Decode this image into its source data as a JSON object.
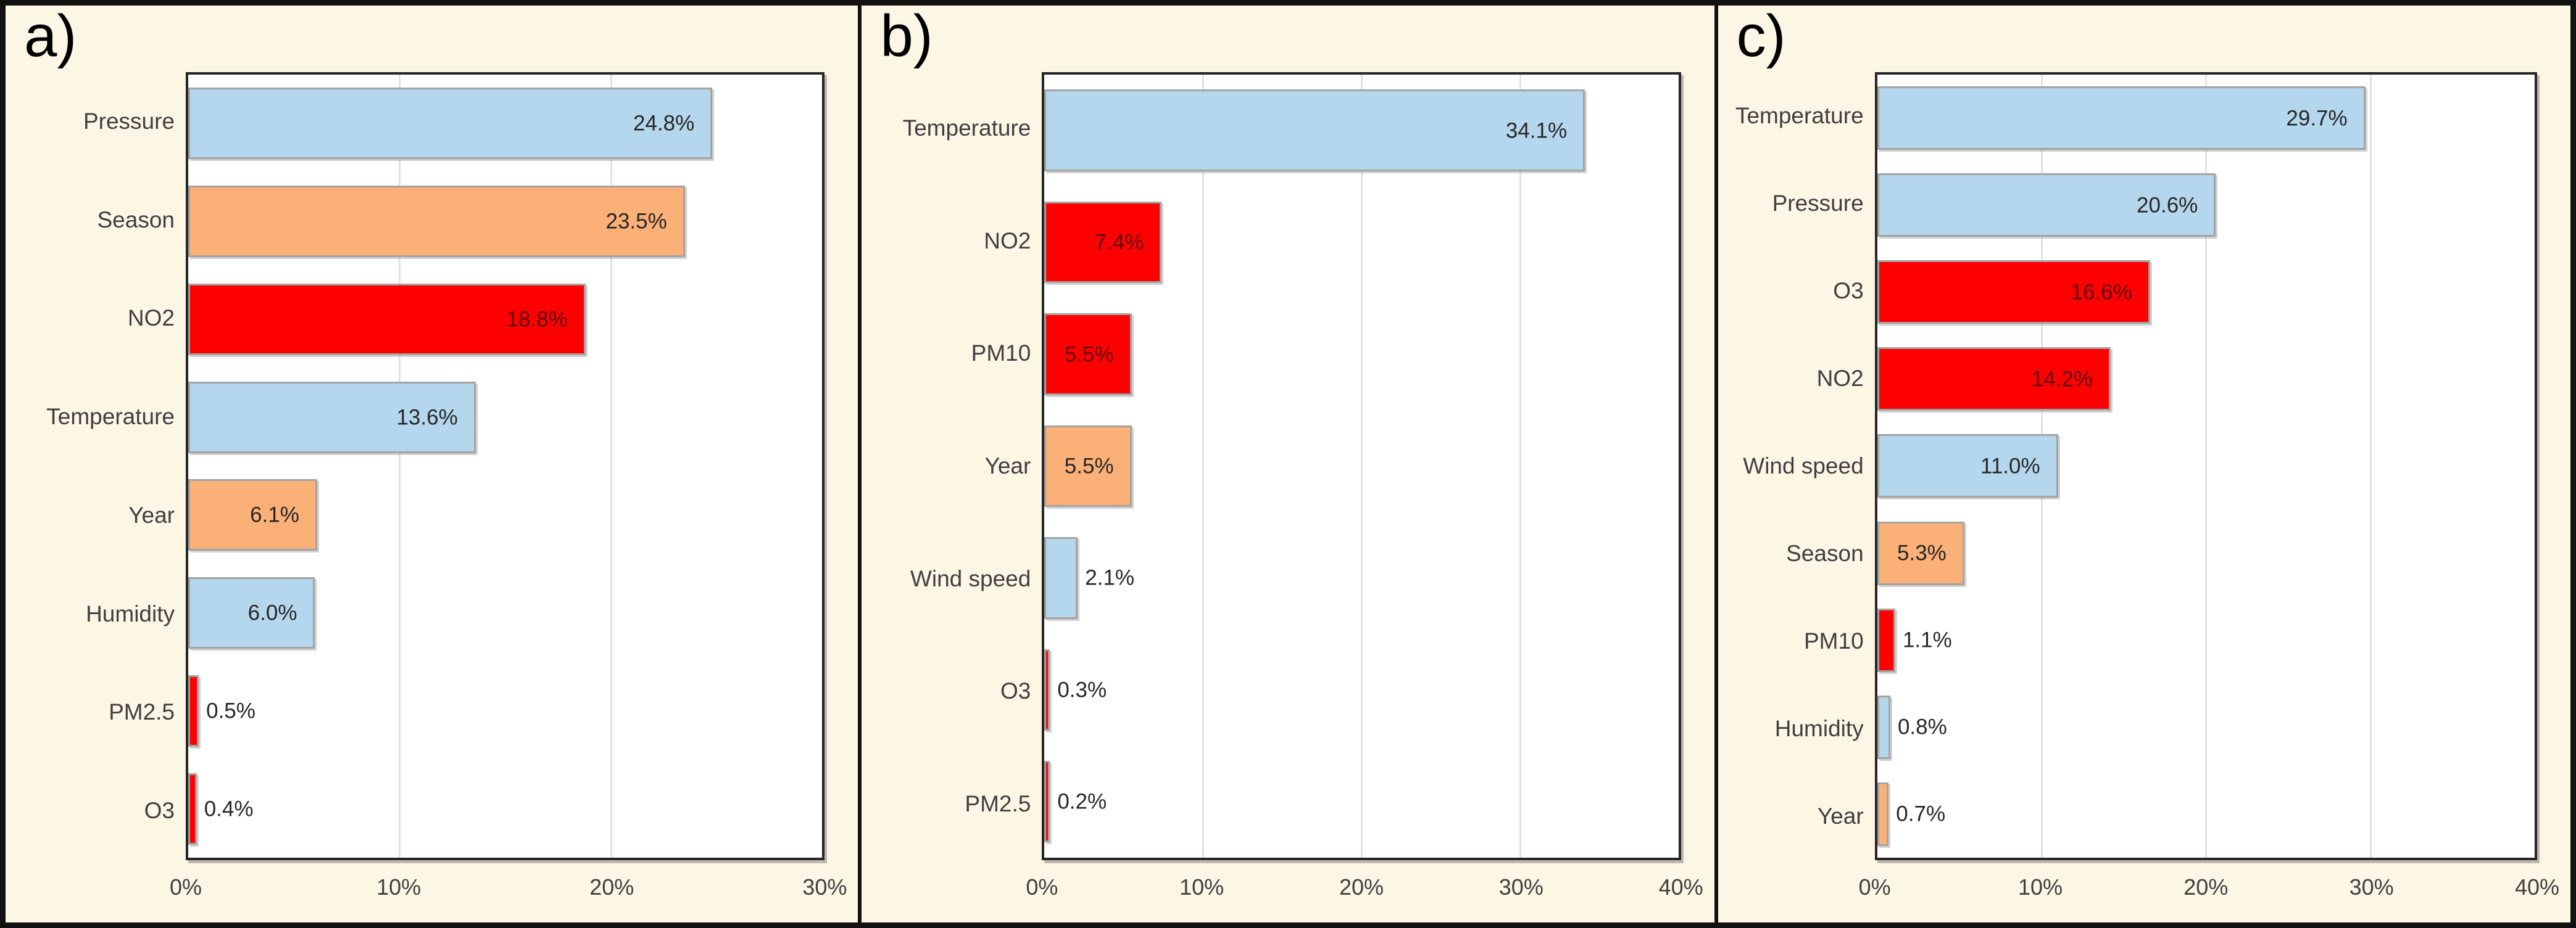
{
  "figure": {
    "colors": {
      "cream": "#FCF6E4",
      "blue": "#B5D7EE",
      "orange": "#FBB077",
      "red": "#FE0000",
      "bar_border": "#A3A3A3",
      "grid": "#E2E2E2",
      "text": "#3F3F3F",
      "label_dark": "#262626"
    }
  },
  "chart_data": [
    {
      "type": "bar",
      "orientation": "horizontal",
      "panel_label": "a)",
      "title": "",
      "xlabel": "",
      "ylabel": "",
      "grid": true,
      "units": "%",
      "xlim": [
        0,
        30
      ],
      "xticks": [
        "0%",
        "10%",
        "20%",
        "30%"
      ],
      "xtick_values": [
        0,
        10,
        20,
        30
      ],
      "categories": [
        "Pressure",
        "Season",
        "NO2",
        "Temperature",
        "Year",
        "Humidity",
        "PM2.5",
        "O3"
      ],
      "values": [
        24.8,
        23.5,
        18.8,
        13.6,
        6.1,
        6.0,
        0.5,
        0.4
      ],
      "value_labels": [
        "24.8%",
        "23.5%",
        "18.8%",
        "13.6%",
        "6.1%",
        "6.0%",
        "0.5%",
        "0.4%"
      ],
      "bar_colors": [
        "blue",
        "orange",
        "red",
        "blue",
        "orange",
        "blue",
        "red",
        "red"
      ]
    },
    {
      "type": "bar",
      "orientation": "horizontal",
      "panel_label": "b)",
      "title": "",
      "xlabel": "",
      "ylabel": "",
      "grid": true,
      "units": "%",
      "xlim": [
        0,
        40
      ],
      "xticks": [
        "0%",
        "10%",
        "20%",
        "30%",
        "40%"
      ],
      "xtick_values": [
        0,
        10,
        20,
        30,
        40
      ],
      "categories": [
        "Temperature",
        "NO2",
        "PM10",
        "Year",
        "Wind speed",
        "O3",
        "PM2.5"
      ],
      "values": [
        34.1,
        7.4,
        5.5,
        5.5,
        2.1,
        0.3,
        0.2
      ],
      "value_labels": [
        "34.1%",
        "7.4%",
        "5.5%",
        "5.5%",
        "2.1%",
        "0.3%",
        "0.2%"
      ],
      "bar_colors": [
        "blue",
        "red",
        "red",
        "orange",
        "blue",
        "red",
        "red"
      ]
    },
    {
      "type": "bar",
      "orientation": "horizontal",
      "panel_label": "c)",
      "title": "",
      "xlabel": "",
      "ylabel": "",
      "grid": true,
      "units": "%",
      "xlim": [
        0,
        40
      ],
      "xticks": [
        "0%",
        "10%",
        "20%",
        "30%",
        "40%"
      ],
      "xtick_values": [
        0,
        10,
        20,
        30,
        40
      ],
      "categories": [
        "Temperature",
        "Pressure",
        "O3",
        "NO2",
        "Wind speed",
        "Season",
        "PM10",
        "Humidity",
        "Year"
      ],
      "values": [
        29.7,
        20.6,
        16.6,
        14.2,
        11.0,
        5.3,
        1.1,
        0.8,
        0.7
      ],
      "value_labels": [
        "29.7%",
        "20.6%",
        "16.6%",
        "14.2%",
        "11.0%",
        "5.3%",
        "1.1%",
        "0.8%",
        "0.7%"
      ],
      "bar_colors": [
        "blue",
        "blue",
        "red",
        "red",
        "blue",
        "orange",
        "red",
        "blue",
        "orange"
      ]
    }
  ]
}
